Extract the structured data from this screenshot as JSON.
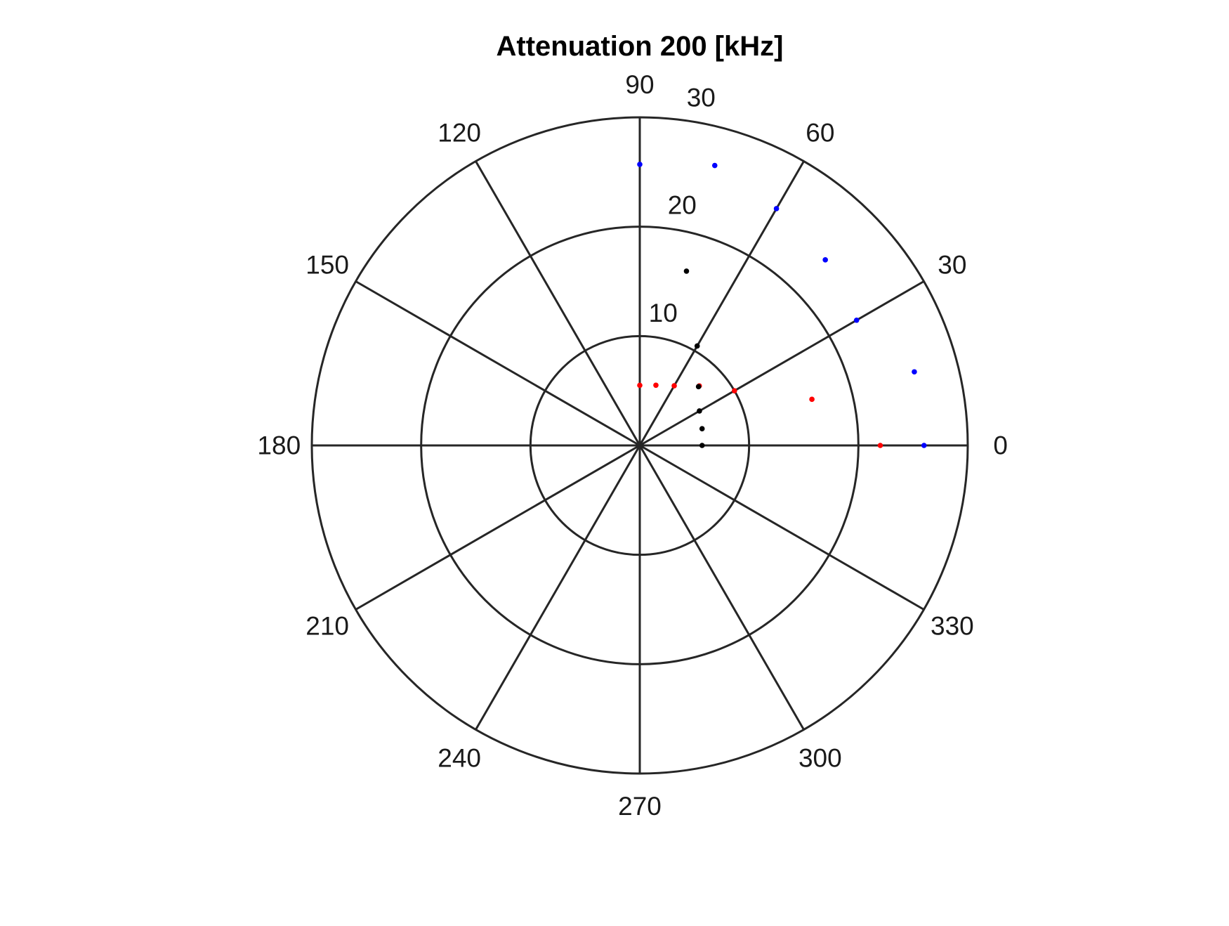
{
  "chart_data": {
    "type": "scatter",
    "coordinate_system": "polar",
    "title": "Attenuation 200 [kHz]",
    "theta_unit": "degrees",
    "theta_ticks": [
      0,
      30,
      60,
      90,
      120,
      150,
      180,
      210,
      240,
      270,
      300,
      330
    ],
    "theta_tick_labels": [
      "0",
      "30",
      "60",
      "90",
      "120",
      "150",
      "180",
      "210",
      "240",
      "270",
      "300",
      "330"
    ],
    "rlim": [
      0,
      30
    ],
    "r_ticks": [
      10,
      20,
      30
    ],
    "r_tick_labels": [
      "10",
      "20",
      "30"
    ],
    "grid": true,
    "legend": "none",
    "series": [
      {
        "color": "#0000ff",
        "points": [
          {
            "theta": 0,
            "r": 26.0
          },
          {
            "theta": 15,
            "r": 26.0
          },
          {
            "theta": 30,
            "r": 22.9
          },
          {
            "theta": 45,
            "r": 24.0
          },
          {
            "theta": 60,
            "r": 25.0
          },
          {
            "theta": 75,
            "r": 26.5
          },
          {
            "theta": 90,
            "r": 25.7
          }
        ]
      },
      {
        "color": "#ff0000",
        "points": [
          {
            "theta": 0,
            "r": 22.0
          },
          {
            "theta": 15,
            "r": 16.3
          },
          {
            "theta": 30,
            "r": 10.0
          },
          {
            "theta": 45,
            "r": 7.7
          },
          {
            "theta": 60,
            "r": 6.3
          },
          {
            "theta": 75,
            "r": 5.7
          },
          {
            "theta": 90,
            "r": 5.5
          }
        ]
      },
      {
        "color": "#000000",
        "points": [
          {
            "theta": 0,
            "r": 5.7
          },
          {
            "theta": 15,
            "r": 5.9
          },
          {
            "theta": 30,
            "r": 6.3
          },
          {
            "theta": 45,
            "r": 7.6
          },
          {
            "theta": 60,
            "r": 10.5
          },
          {
            "theta": 75,
            "r": 16.5
          }
        ]
      }
    ]
  }
}
